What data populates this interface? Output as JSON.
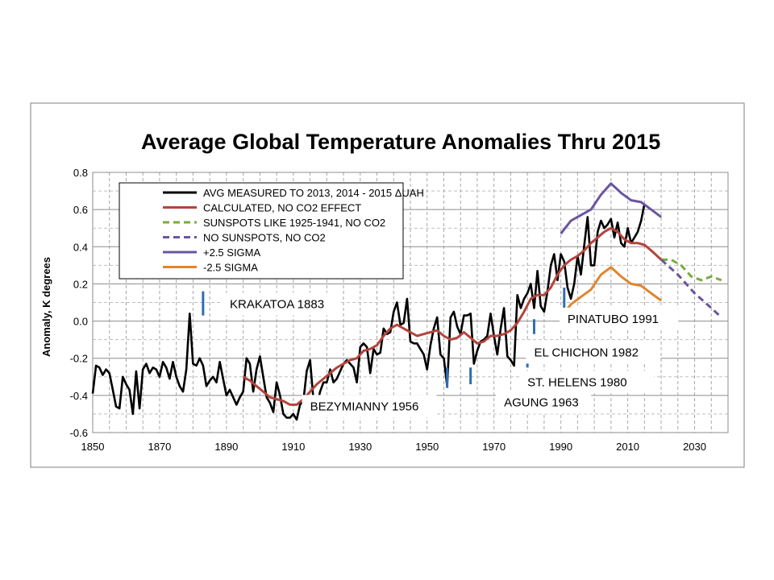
{
  "chart_data": {
    "type": "line",
    "title": "Average Global Temperature Anomalies Thru 2015",
    "xlabel": "",
    "ylabel": "Anomaly, K degrees",
    "xlim": [
      1850,
      2040
    ],
    "ylim": [
      -0.6,
      0.8
    ],
    "xticks": [
      1850,
      1870,
      1890,
      1910,
      1930,
      1950,
      1970,
      1990,
      2010,
      2030
    ],
    "yticks": [
      -0.6,
      -0.4,
      -0.2,
      0.0,
      0.2,
      0.4,
      0.6,
      0.8
    ],
    "ytick_labels": [
      "-0.6",
      "-0.4",
      "-0.2",
      "0.0",
      "0.2",
      "0.4",
      "0.6",
      "0.8"
    ],
    "grid": true,
    "legend_position": "top-left",
    "series": [
      {
        "name": "AVG MEASURED TO 2013, 2014 - 2015 ΔUAH",
        "color": "#000000",
        "dash": "solid",
        "x": [
          1850,
          1851,
          1852,
          1853,
          1854,
          1855,
          1856,
          1857,
          1858,
          1859,
          1860,
          1861,
          1862,
          1863,
          1864,
          1865,
          1866,
          1867,
          1868,
          1869,
          1870,
          1871,
          1872,
          1873,
          1874,
          1875,
          1876,
          1877,
          1878,
          1879,
          1880,
          1881,
          1882,
          1883,
          1884,
          1885,
          1886,
          1887,
          1888,
          1889,
          1890,
          1891,
          1892,
          1893,
          1894,
          1895,
          1896,
          1897,
          1898,
          1899,
          1900,
          1901,
          1902,
          1903,
          1904,
          1905,
          1906,
          1907,
          1908,
          1909,
          1910,
          1911,
          1912,
          1913,
          1914,
          1915,
          1916,
          1917,
          1918,
          1919,
          1920,
          1921,
          1922,
          1923,
          1924,
          1925,
          1926,
          1927,
          1928,
          1929,
          1930,
          1931,
          1932,
          1933,
          1934,
          1935,
          1936,
          1937,
          1938,
          1939,
          1940,
          1941,
          1942,
          1943,
          1944,
          1945,
          1946,
          1947,
          1948,
          1949,
          1950,
          1951,
          1952,
          1953,
          1954,
          1955,
          1956,
          1957,
          1958,
          1959,
          1960,
          1961,
          1962,
          1963,
          1964,
          1965,
          1966,
          1967,
          1968,
          1969,
          1970,
          1971,
          1972,
          1973,
          1974,
          1975,
          1976,
          1977,
          1978,
          1979,
          1980,
          1981,
          1982,
          1983,
          1984,
          1985,
          1986,
          1987,
          1988,
          1989,
          1990,
          1991,
          1992,
          1993,
          1994,
          1995,
          1996,
          1997,
          1998,
          1999,
          2000,
          2001,
          2002,
          2003,
          2004,
          2005,
          2006,
          2007,
          2008,
          2009,
          2010,
          2011,
          2012,
          2013,
          2014,
          2015
        ],
        "y": [
          -0.39,
          -0.24,
          -0.25,
          -0.29,
          -0.26,
          -0.28,
          -0.37,
          -0.46,
          -0.47,
          -0.3,
          -0.34,
          -0.37,
          -0.5,
          -0.27,
          -0.47,
          -0.26,
          -0.23,
          -0.28,
          -0.25,
          -0.26,
          -0.3,
          -0.22,
          -0.25,
          -0.31,
          -0.22,
          -0.3,
          -0.35,
          -0.38,
          -0.26,
          0.04,
          -0.23,
          -0.24,
          -0.2,
          -0.24,
          -0.35,
          -0.32,
          -0.3,
          -0.33,
          -0.22,
          -0.31,
          -0.4,
          -0.37,
          -0.41,
          -0.45,
          -0.41,
          -0.38,
          -0.2,
          -0.23,
          -0.38,
          -0.26,
          -0.19,
          -0.3,
          -0.41,
          -0.44,
          -0.49,
          -0.33,
          -0.4,
          -0.5,
          -0.52,
          -0.52,
          -0.5,
          -0.53,
          -0.45,
          -0.43,
          -0.27,
          -0.21,
          -0.42,
          -0.46,
          -0.38,
          -0.33,
          -0.33,
          -0.26,
          -0.33,
          -0.31,
          -0.27,
          -0.23,
          -0.21,
          -0.23,
          -0.25,
          -0.33,
          -0.14,
          -0.12,
          -0.14,
          -0.28,
          -0.15,
          -0.18,
          -0.17,
          -0.04,
          -0.07,
          -0.06,
          0.05,
          0.1,
          -0.02,
          -0.01,
          0.12,
          -0.11,
          -0.12,
          -0.12,
          -0.15,
          -0.18,
          -0.26,
          -0.13,
          -0.04,
          0.02,
          -0.18,
          -0.2,
          -0.35,
          0.02,
          0.05,
          -0.03,
          -0.07,
          0.03,
          0.03,
          0.04,
          -0.23,
          -0.16,
          -0.11,
          -0.1,
          -0.08,
          0.04,
          -0.08,
          -0.18,
          -0.04,
          0.07,
          -0.19,
          -0.21,
          -0.24,
          0.14,
          0.07,
          0.12,
          0.15,
          0.2,
          0.07,
          0.27,
          0.08,
          0.05,
          0.16,
          0.3,
          0.36,
          0.22,
          0.36,
          0.32,
          0.18,
          0.12,
          0.2,
          0.35,
          0.25,
          0.41,
          0.56,
          0.3,
          0.3,
          0.48,
          0.54,
          0.5,
          0.52,
          0.55,
          0.45,
          0.53,
          0.42,
          0.4,
          0.5,
          0.42,
          0.45,
          0.48,
          0.54,
          0.63
        ]
      },
      {
        "name": "CALCULATED, NO CO2 EFFECT",
        "color": "#b3443c",
        "dash": "solid",
        "x": [
          1895,
          1897,
          1899,
          1901,
          1903,
          1905,
          1907,
          1909,
          1911,
          1913,
          1915,
          1917,
          1919,
          1921,
          1923,
          1925,
          1927,
          1929,
          1931,
          1933,
          1935,
          1937,
          1939,
          1941,
          1943,
          1945,
          1947,
          1949,
          1951,
          1953,
          1955,
          1957,
          1959,
          1961,
          1963,
          1965,
          1967,
          1969,
          1971,
          1973,
          1975,
          1977,
          1979,
          1981,
          1983,
          1985,
          1987,
          1989,
          1991,
          1993,
          1995,
          1997,
          1999,
          2001,
          2003,
          2005,
          2007,
          2009,
          2011,
          2013,
          2015,
          2017,
          2020
        ],
        "y": [
          -0.3,
          -0.32,
          -0.35,
          -0.38,
          -0.41,
          -0.42,
          -0.43,
          -0.45,
          -0.45,
          -0.42,
          -0.38,
          -0.34,
          -0.31,
          -0.28,
          -0.25,
          -0.23,
          -0.21,
          -0.2,
          -0.16,
          -0.15,
          -0.13,
          -0.08,
          -0.04,
          -0.02,
          -0.04,
          -0.06,
          -0.08,
          -0.07,
          -0.06,
          -0.05,
          -0.08,
          -0.1,
          -0.09,
          -0.06,
          -0.09,
          -0.12,
          -0.11,
          -0.08,
          -0.08,
          -0.07,
          -0.05,
          -0.01,
          0.05,
          0.12,
          0.14,
          0.14,
          0.18,
          0.25,
          0.3,
          0.33,
          0.35,
          0.38,
          0.42,
          0.45,
          0.48,
          0.5,
          0.48,
          0.44,
          0.42,
          0.42,
          0.41,
          0.38,
          0.33
        ]
      },
      {
        "name": "SUNSPOTS LIKE 1925-1941, NO CO2",
        "color": "#7aab3e",
        "dash": "dashed",
        "x": [
          2020,
          2023,
          2026,
          2029,
          2032,
          2035,
          2038
        ],
        "y": [
          0.33,
          0.33,
          0.3,
          0.24,
          0.22,
          0.24,
          0.22
        ]
      },
      {
        "name": "NO SUNSPOTS, NO CO2",
        "color": "#6a55a0",
        "dash": "dashed",
        "x": [
          2020,
          2025,
          2030,
          2035,
          2038
        ],
        "y": [
          0.33,
          0.25,
          0.15,
          0.07,
          0.02
        ]
      },
      {
        "name": "+2.5 SIGMA",
        "color": "#6a55a0",
        "dash": "solid",
        "x": [
          1990,
          1993,
          1996,
          1999,
          2002,
          2005,
          2008,
          2011,
          2014,
          2017,
          2020
        ],
        "y": [
          0.47,
          0.54,
          0.57,
          0.6,
          0.68,
          0.74,
          0.69,
          0.65,
          0.64,
          0.6,
          0.56
        ]
      },
      {
        "name": "-2.5 SIGMA",
        "color": "#e0852e",
        "dash": "solid",
        "x": [
          1990,
          1993,
          1996,
          1999,
          2002,
          2005,
          2008,
          2011,
          2014,
          2017,
          2020
        ],
        "y": [
          0.02,
          0.09,
          0.13,
          0.17,
          0.25,
          0.29,
          0.24,
          0.2,
          0.19,
          0.15,
          0.11
        ]
      }
    ],
    "annotations": [
      {
        "label": "KRAKATOA 1883",
        "marker_x": 1883,
        "marker_y": [
          0.03,
          0.16
        ],
        "box_x": 1891,
        "box_y": 0.07
      },
      {
        "label": "BEZYMIANNY 1956",
        "marker_x": 1956,
        "marker_y": [
          -0.36,
          -0.25
        ],
        "box_x": 1915,
        "box_y": -0.48
      },
      {
        "label": "AGUNG 1963",
        "marker_x": 1963,
        "marker_y": [
          -0.34,
          -0.25
        ],
        "box_x": 1973,
        "box_y": -0.46
      },
      {
        "label": "ST. HELENS 1980",
        "marker_x": 1980,
        "marker_y": [
          -0.25,
          -0.12
        ],
        "box_x": 1980,
        "box_y": -0.35
      },
      {
        "label": "EL CHICHON 1982",
        "marker_x": 1982,
        "marker_y": [
          -0.07,
          0.01
        ],
        "box_x": 1982,
        "box_y": -0.19
      },
      {
        "label": "PINATUBO 1991",
        "marker_x": 1991,
        "marker_y": [
          0.06,
          0.18
        ],
        "box_x": 1992,
        "box_y": -0.01
      }
    ]
  }
}
